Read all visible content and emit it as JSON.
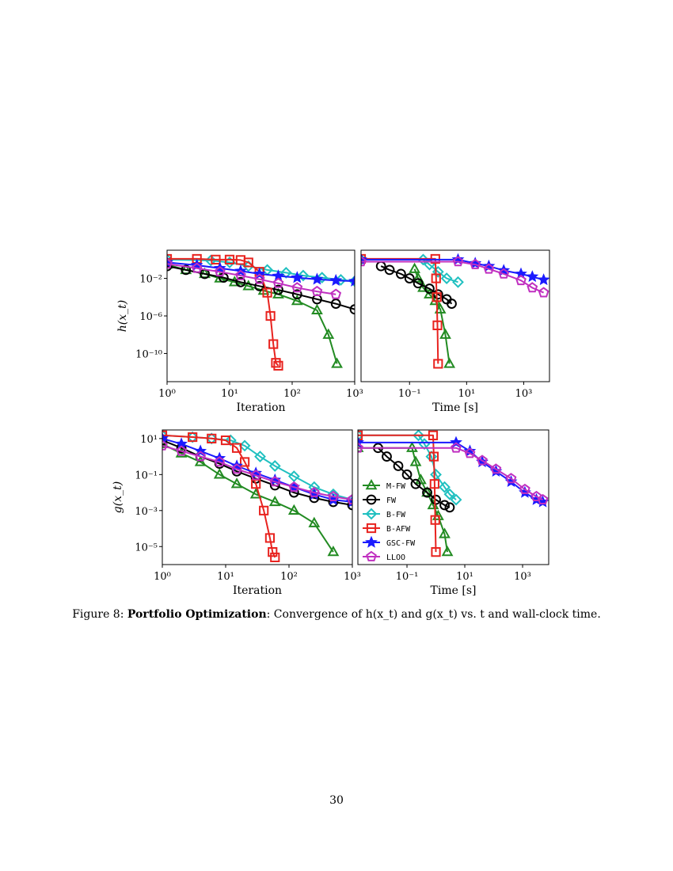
{
  "chart_data": [
    {
      "type": "line",
      "id": "h-iter",
      "xlabel": "Iteration",
      "ylabel": "h(x_t)",
      "xscale": "log",
      "yscale": "log",
      "xlim": [
        1,
        1000
      ],
      "ylim": [
        1e-13,
        10.0
      ],
      "xticks": [
        1,
        10,
        100,
        1000
      ],
      "yticks": [
        0.01,
        1e-06,
        1e-10
      ],
      "legend": "none",
      "series": [
        {
          "name": "M-FW",
          "x": [
            1,
            2,
            4,
            7,
            12,
            20,
            35,
            60,
            120,
            250,
            380,
            520
          ],
          "y": [
            0.3,
            0.08,
            0.03,
            0.01,
            0.004,
            0.0015,
            0.0005,
            0.0002,
            4e-05,
            4e-06,
            1e-08,
            8e-12
          ]
        },
        {
          "name": "FW",
          "x": [
            1,
            2,
            4,
            8,
            15,
            30,
            60,
            120,
            250,
            500,
            1000
          ],
          "y": [
            0.2,
            0.08,
            0.03,
            0.012,
            0.004,
            0.0015,
            0.0006,
            0.0002,
            6e-05,
            2e-05,
            5e-06
          ]
        },
        {
          "name": "B-FW",
          "x": [
            1,
            5,
            10,
            20,
            40,
            80,
            150,
            300,
            600,
            1000
          ],
          "y": [
            1,
            0.8,
            0.5,
            0.2,
            0.08,
            0.04,
            0.02,
            0.012,
            0.007,
            0.005
          ]
        },
        {
          "name": "B-AFW",
          "x": [
            1,
            3,
            6,
            10,
            15,
            20,
            30,
            40,
            45,
            50,
            55,
            60
          ],
          "y": [
            1.2,
            1.2,
            1.0,
            1.0,
            0.9,
            0.5,
            0.05,
            0.0003,
            1e-06,
            1e-09,
            1e-11,
            5e-12
          ]
        },
        {
          "name": "GSC-FW",
          "x": [
            1,
            3,
            7,
            15,
            30,
            60,
            120,
            250,
            500,
            1000
          ],
          "y": [
            0.5,
            0.25,
            0.12,
            0.06,
            0.03,
            0.018,
            0.012,
            0.008,
            0.006,
            0.005
          ]
        },
        {
          "name": "LLOO",
          "x": [
            1,
            3,
            7,
            15,
            30,
            60,
            120,
            250,
            500
          ],
          "y": [
            0.35,
            0.12,
            0.05,
            0.02,
            0.008,
            0.003,
            0.001,
            0.0004,
            0.0002
          ]
        }
      ]
    },
    {
      "type": "line",
      "id": "h-time",
      "xlabel": "Time [s]",
      "ylabel": "",
      "xscale": "log",
      "yscale": "log",
      "xlim": [
        0.002,
        8000
      ],
      "ylim": [
        1e-13,
        10.0
      ],
      "xticks": [
        0.1,
        10,
        1000
      ],
      "yticks": [],
      "legend": "none",
      "series": [
        {
          "name": "M-FW",
          "x": [
            0.15,
            0.2,
            0.3,
            0.5,
            0.8,
            1.2,
            1.8,
            2.5
          ],
          "y": [
            0.1,
            0.01,
            0.001,
            0.0002,
            4e-05,
            5e-06,
            1e-08,
            8e-12
          ]
        },
        {
          "name": "FW",
          "x": [
            0.01,
            0.02,
            0.05,
            0.1,
            0.2,
            0.5,
            1,
            2,
            3
          ],
          "y": [
            0.2,
            0.08,
            0.03,
            0.01,
            0.003,
            0.0008,
            0.0002,
            6e-05,
            2e-05
          ]
        },
        {
          "name": "B-FW",
          "x": [
            0.002,
            0.3,
            0.5,
            1,
            2,
            5
          ],
          "y": [
            1,
            1,
            0.3,
            0.05,
            0.01,
            0.004
          ]
        },
        {
          "name": "B-AFW",
          "x": [
            0.002,
            0.8,
            0.85,
            0.9,
            0.95,
            1.0
          ],
          "y": [
            1.2,
            1.2,
            0.01,
            0.0001,
            1e-07,
            8e-12
          ]
        },
        {
          "name": "GSC-FW",
          "x": [
            0.002,
            5,
            20,
            60,
            200,
            800,
            2000,
            5000
          ],
          "y": [
            1,
            1,
            0.4,
            0.2,
            0.07,
            0.03,
            0.015,
            0.007
          ]
        },
        {
          "name": "LLOO",
          "x": [
            0.002,
            5,
            20,
            60,
            200,
            800,
            2000,
            5000
          ],
          "y": [
            0.6,
            0.6,
            0.3,
            0.1,
            0.03,
            0.006,
            0.001,
            0.0003
          ]
        }
      ]
    },
    {
      "type": "line",
      "id": "g-iter",
      "xlabel": "Iteration",
      "ylabel": "g(x_t)",
      "xscale": "log",
      "yscale": "log",
      "xlim": [
        1,
        1000
      ],
      "ylim": [
        1e-06,
        30
      ],
      "xticks": [
        1,
        10,
        100,
        1000
      ],
      "yticks": [
        10,
        0.1,
        0.001,
        1e-05
      ],
      "legend": "none",
      "series": [
        {
          "name": "M-FW",
          "x": [
            1,
            2,
            4,
            8,
            15,
            30,
            60,
            120,
            250,
            500
          ],
          "y": [
            5,
            1.5,
            0.5,
            0.1,
            0.03,
            0.008,
            0.003,
            0.001,
            0.0002,
            5e-06
          ]
        },
        {
          "name": "FW",
          "x": [
            1,
            2,
            4,
            8,
            15,
            30,
            60,
            120,
            250,
            500,
            1000
          ],
          "y": [
            8,
            3,
            1,
            0.4,
            0.15,
            0.06,
            0.025,
            0.01,
            0.005,
            0.003,
            0.002
          ]
        },
        {
          "name": "B-FW",
          "x": [
            1,
            3,
            6,
            12,
            20,
            35,
            60,
            120,
            250,
            500,
            1000
          ],
          "y": [
            15,
            12,
            10,
            8,
            4,
            1,
            0.3,
            0.08,
            0.02,
            0.008,
            0.004
          ]
        },
        {
          "name": "B-AFW",
          "x": [
            1,
            3,
            6,
            10,
            15,
            20,
            30,
            40,
            50,
            55,
            60
          ],
          "y": [
            15,
            12,
            10,
            8,
            3,
            0.5,
            0.03,
            0.001,
            3e-05,
            5e-06,
            2.5e-06
          ]
        },
        {
          "name": "GSC-FW",
          "x": [
            1,
            2,
            4,
            8,
            15,
            30,
            60,
            120,
            250,
            500,
            1000
          ],
          "y": [
            10,
            5,
            2,
            0.8,
            0.3,
            0.12,
            0.05,
            0.02,
            0.008,
            0.004,
            0.003
          ]
        },
        {
          "name": "LLOO",
          "x": [
            1,
            2,
            4,
            8,
            15,
            30,
            60,
            120,
            250,
            500,
            1000
          ],
          "y": [
            4,
            2,
            1,
            0.5,
            0.2,
            0.09,
            0.04,
            0.02,
            0.01,
            0.006,
            0.004
          ]
        }
      ]
    },
    {
      "type": "line",
      "id": "g-time",
      "xlabel": "Time [s]",
      "ylabel": "",
      "xscale": "log",
      "yscale": "log",
      "xlim": [
        0.002,
        8000
      ],
      "ylim": [
        1e-06,
        30
      ],
      "xticks": [
        0.1,
        10,
        1000
      ],
      "yticks": [],
      "legend": "bottom-left",
      "series": [
        {
          "name": "M-FW",
          "x": [
            0.002,
            0.15,
            0.2,
            0.3,
            0.5,
            0.8,
            1.2,
            2,
            2.5
          ],
          "y": [
            3,
            3,
            0.5,
            0.05,
            0.01,
            0.002,
            0.0005,
            5e-05,
            5e-06
          ]
        },
        {
          "name": "FW",
          "x": [
            0.01,
            0.02,
            0.05,
            0.1,
            0.2,
            0.5,
            1,
            2,
            3
          ],
          "y": [
            3,
            1,
            0.3,
            0.1,
            0.03,
            0.01,
            0.004,
            0.002,
            0.0015
          ]
        },
        {
          "name": "B-FW",
          "x": [
            0.002,
            0.25,
            0.4,
            0.7,
            1,
            2,
            3,
            5
          ],
          "y": [
            15,
            15,
            5,
            1,
            0.1,
            0.02,
            0.008,
            0.004
          ]
        },
        {
          "name": "B-AFW",
          "x": [
            0.002,
            0.8,
            0.85,
            0.9,
            0.95,
            1.0
          ],
          "y": [
            15,
            15,
            1,
            0.03,
            0.0003,
            5e-06
          ]
        },
        {
          "name": "GSC-FW",
          "x": [
            0.002,
            5,
            15,
            40,
            120,
            400,
            1200,
            3000,
            5000
          ],
          "y": [
            6,
            6,
            2,
            0.5,
            0.15,
            0.04,
            0.01,
            0.004,
            0.003
          ]
        },
        {
          "name": "LLOO",
          "x": [
            0.002,
            5,
            15,
            40,
            120,
            400,
            1200,
            3000,
            5000
          ],
          "y": [
            3,
            3,
            1.5,
            0.6,
            0.2,
            0.06,
            0.015,
            0.006,
            0.004
          ]
        }
      ]
    }
  ],
  "styles": {
    "M-FW": {
      "color": "#228b22",
      "marker": "triangle"
    },
    "FW": {
      "color": "#000000",
      "marker": "circle"
    },
    "B-FW": {
      "color": "#20c0c0",
      "marker": "diamond"
    },
    "B-AFW": {
      "color": "#e8231f",
      "marker": "square"
    },
    "GSC-FW": {
      "color": "#1a1aff",
      "marker": "star"
    },
    "LLOO": {
      "color": "#c030c0",
      "marker": "pentagon"
    }
  },
  "caption": {
    "prefix": "Figure 8: ",
    "bold": "Portfolio Optimization",
    "text": ": Convergence of h(x_t) and g(x_t) vs. t and wall-clock time."
  },
  "page_number": "30"
}
